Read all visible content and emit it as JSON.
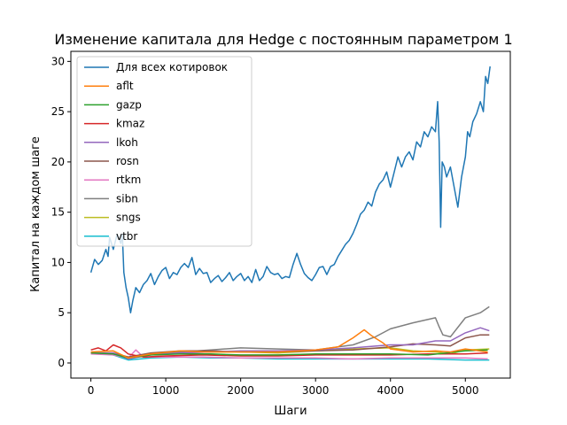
{
  "chart_data": {
    "type": "line",
    "title": "Изменение капитала для Hedge с постоянным параметром 1",
    "xlabel": "Шаги",
    "ylabel": "Капитал на каждом шаге",
    "xlim": [
      -267,
      5600
    ],
    "ylim": [
      -1.5,
      31.0
    ],
    "xticks": [
      0,
      1000,
      2000,
      3000,
      4000,
      5000
    ],
    "yticks": [
      0,
      5,
      10,
      15,
      20,
      25,
      30
    ],
    "legend_position": "top-left",
    "grid": false,
    "series": [
      {
        "name": "Для всех котировок",
        "color": "#1f77b4",
        "points": [
          [
            0,
            9.0
          ],
          [
            50,
            10.3
          ],
          [
            100,
            9.8
          ],
          [
            150,
            10.2
          ],
          [
            200,
            11.3
          ],
          [
            230,
            10.6
          ],
          [
            250,
            12.5
          ],
          [
            300,
            11.3
          ],
          [
            350,
            12.8
          ],
          [
            400,
            11.9
          ],
          [
            420,
            12.8
          ],
          [
            440,
            9.0
          ],
          [
            470,
            7.5
          ],
          [
            500,
            6.5
          ],
          [
            530,
            5.0
          ],
          [
            560,
            6.2
          ],
          [
            600,
            7.5
          ],
          [
            650,
            7.0
          ],
          [
            700,
            7.8
          ],
          [
            750,
            8.2
          ],
          [
            800,
            8.9
          ],
          [
            850,
            7.8
          ],
          [
            900,
            8.6
          ],
          [
            950,
            9.2
          ],
          [
            1000,
            9.5
          ],
          [
            1050,
            8.4
          ],
          [
            1100,
            9.0
          ],
          [
            1150,
            8.8
          ],
          [
            1200,
            9.5
          ],
          [
            1250,
            9.9
          ],
          [
            1300,
            9.5
          ],
          [
            1350,
            10.5
          ],
          [
            1400,
            8.8
          ],
          [
            1450,
            9.4
          ],
          [
            1500,
            8.9
          ],
          [
            1550,
            9.0
          ],
          [
            1600,
            8.0
          ],
          [
            1650,
            8.4
          ],
          [
            1700,
            8.7
          ],
          [
            1750,
            8.1
          ],
          [
            1800,
            8.5
          ],
          [
            1850,
            9.0
          ],
          [
            1900,
            8.2
          ],
          [
            1950,
            8.6
          ],
          [
            2000,
            8.9
          ],
          [
            2050,
            8.2
          ],
          [
            2100,
            8.6
          ],
          [
            2150,
            8.0
          ],
          [
            2200,
            9.3
          ],
          [
            2250,
            8.2
          ],
          [
            2300,
            8.6
          ],
          [
            2350,
            9.6
          ],
          [
            2400,
            9.0
          ],
          [
            2450,
            8.8
          ],
          [
            2500,
            8.9
          ],
          [
            2550,
            8.4
          ],
          [
            2600,
            8.6
          ],
          [
            2650,
            8.5
          ],
          [
            2700,
            9.8
          ],
          [
            2750,
            10.9
          ],
          [
            2800,
            9.8
          ],
          [
            2850,
            8.9
          ],
          [
            2900,
            8.5
          ],
          [
            2950,
            8.2
          ],
          [
            3000,
            8.8
          ],
          [
            3050,
            9.5
          ],
          [
            3100,
            9.6
          ],
          [
            3150,
            8.8
          ],
          [
            3200,
            9.6
          ],
          [
            3250,
            9.8
          ],
          [
            3300,
            10.6
          ],
          [
            3350,
            11.2
          ],
          [
            3400,
            11.8
          ],
          [
            3450,
            12.2
          ],
          [
            3500,
            12.9
          ],
          [
            3550,
            13.8
          ],
          [
            3600,
            14.8
          ],
          [
            3650,
            15.2
          ],
          [
            3700,
            16.0
          ],
          [
            3750,
            15.6
          ],
          [
            3800,
            17.0
          ],
          [
            3850,
            17.8
          ],
          [
            3900,
            18.2
          ],
          [
            3950,
            19.0
          ],
          [
            4000,
            17.5
          ],
          [
            4050,
            19.0
          ],
          [
            4100,
            20.5
          ],
          [
            4150,
            19.5
          ],
          [
            4200,
            20.5
          ],
          [
            4250,
            21.0
          ],
          [
            4300,
            20.2
          ],
          [
            4350,
            22.0
          ],
          [
            4400,
            21.5
          ],
          [
            4450,
            23.0
          ],
          [
            4500,
            22.5
          ],
          [
            4550,
            23.5
          ],
          [
            4600,
            23.0
          ],
          [
            4630,
            26.0
          ],
          [
            4650,
            22.0
          ],
          [
            4670,
            13.5
          ],
          [
            4690,
            20.0
          ],
          [
            4720,
            19.5
          ],
          [
            4750,
            18.5
          ],
          [
            4800,
            19.5
          ],
          [
            4850,
            17.5
          ],
          [
            4900,
            15.5
          ],
          [
            4950,
            18.5
          ],
          [
            5000,
            20.5
          ],
          [
            5030,
            23.0
          ],
          [
            5060,
            22.5
          ],
          [
            5100,
            24.0
          ],
          [
            5150,
            24.8
          ],
          [
            5200,
            26.0
          ],
          [
            5240,
            25.0
          ],
          [
            5270,
            28.5
          ],
          [
            5300,
            27.8
          ],
          [
            5330,
            29.5
          ]
        ]
      },
      {
        "name": "aflt",
        "color": "#ff7f0e",
        "points": [
          [
            0,
            1.1
          ],
          [
            300,
            1.2
          ],
          [
            500,
            0.5
          ],
          [
            800,
            0.9
          ],
          [
            1200,
            1.2
          ],
          [
            1500,
            1.1
          ],
          [
            2000,
            1.1
          ],
          [
            2500,
            1.1
          ],
          [
            3000,
            1.3
          ],
          [
            3300,
            1.6
          ],
          [
            3500,
            2.5
          ],
          [
            3650,
            3.3
          ],
          [
            3750,
            2.7
          ],
          [
            3900,
            2.0
          ],
          [
            4000,
            1.4
          ],
          [
            4300,
            1.1
          ],
          [
            4600,
            1.2
          ],
          [
            4800,
            1.1
          ],
          [
            5000,
            1.4
          ],
          [
            5300,
            1.1
          ]
        ]
      },
      {
        "name": "gazp",
        "color": "#2ca02c",
        "points": [
          [
            0,
            1.0
          ],
          [
            300,
            0.9
          ],
          [
            500,
            0.5
          ],
          [
            800,
            0.8
          ],
          [
            1200,
            0.9
          ],
          [
            1600,
            0.9
          ],
          [
            2000,
            0.8
          ],
          [
            2500,
            0.8
          ],
          [
            3000,
            0.9
          ],
          [
            3500,
            0.9
          ],
          [
            4000,
            0.9
          ],
          [
            4500,
            0.8
          ],
          [
            5000,
            1.2
          ],
          [
            5300,
            1.3
          ]
        ]
      },
      {
        "name": "kmaz",
        "color": "#d62728",
        "points": [
          [
            0,
            1.3
          ],
          [
            100,
            1.5
          ],
          [
            200,
            1.2
          ],
          [
            300,
            1.8
          ],
          [
            400,
            1.5
          ],
          [
            500,
            0.9
          ],
          [
            700,
            0.6
          ],
          [
            1000,
            0.7
          ],
          [
            1500,
            0.8
          ],
          [
            2000,
            0.7
          ],
          [
            2500,
            0.7
          ],
          [
            3000,
            0.8
          ],
          [
            3500,
            0.8
          ],
          [
            4000,
            0.8
          ],
          [
            4500,
            0.9
          ],
          [
            5000,
            0.9
          ],
          [
            5300,
            1.0
          ]
        ]
      },
      {
        "name": "lkoh",
        "color": "#9467bd",
        "points": [
          [
            0,
            1.0
          ],
          [
            300,
            1.0
          ],
          [
            500,
            0.4
          ],
          [
            800,
            0.8
          ],
          [
            1200,
            1.0
          ],
          [
            1600,
            1.1
          ],
          [
            2000,
            1.2
          ],
          [
            2500,
            1.2
          ],
          [
            3000,
            1.3
          ],
          [
            3500,
            1.5
          ],
          [
            4000,
            1.8
          ],
          [
            4300,
            1.8
          ],
          [
            4600,
            2.2
          ],
          [
            4800,
            2.2
          ],
          [
            5000,
            3.0
          ],
          [
            5200,
            3.5
          ],
          [
            5320,
            3.2
          ]
        ]
      },
      {
        "name": "rosn",
        "color": "#8c564b",
        "points": [
          [
            0,
            1.0
          ],
          [
            300,
            1.0
          ],
          [
            500,
            0.6
          ],
          [
            800,
            1.0
          ],
          [
            1200,
            1.2
          ],
          [
            1600,
            1.2
          ],
          [
            2000,
            1.1
          ],
          [
            2500,
            1.1
          ],
          [
            3000,
            1.2
          ],
          [
            3500,
            1.3
          ],
          [
            4000,
            1.6
          ],
          [
            4300,
            1.9
          ],
          [
            4600,
            1.8
          ],
          [
            4800,
            1.7
          ],
          [
            5000,
            2.5
          ],
          [
            5200,
            2.8
          ],
          [
            5320,
            2.8
          ]
        ]
      },
      {
        "name": "rtkm",
        "color": "#e377c2",
        "points": [
          [
            0,
            0.9
          ],
          [
            300,
            0.8
          ],
          [
            500,
            0.5
          ],
          [
            600,
            1.3
          ],
          [
            700,
            0.6
          ],
          [
            1000,
            0.6
          ],
          [
            1500,
            0.6
          ],
          [
            2000,
            0.5
          ],
          [
            2500,
            0.5
          ],
          [
            3000,
            0.5
          ],
          [
            3500,
            0.4
          ],
          [
            4000,
            0.5
          ],
          [
            4500,
            0.5
          ],
          [
            5000,
            0.5
          ],
          [
            5300,
            0.4
          ]
        ]
      },
      {
        "name": "sibn",
        "color": "#7f7f7f",
        "points": [
          [
            0,
            1.0
          ],
          [
            300,
            0.9
          ],
          [
            500,
            0.6
          ],
          [
            800,
            0.9
          ],
          [
            1200,
            1.1
          ],
          [
            1600,
            1.3
          ],
          [
            2000,
            1.5
          ],
          [
            2500,
            1.4
          ],
          [
            3000,
            1.3
          ],
          [
            3500,
            1.8
          ],
          [
            3800,
            2.6
          ],
          [
            4000,
            3.4
          ],
          [
            4300,
            4.0
          ],
          [
            4600,
            4.5
          ],
          [
            4650,
            3.6
          ],
          [
            4700,
            2.8
          ],
          [
            4800,
            2.6
          ],
          [
            5000,
            4.5
          ],
          [
            5200,
            5.0
          ],
          [
            5320,
            5.6
          ]
        ]
      },
      {
        "name": "sngs",
        "color": "#bcbd22",
        "points": [
          [
            0,
            1.0
          ],
          [
            300,
            0.9
          ],
          [
            500,
            0.5
          ],
          [
            800,
            0.9
          ],
          [
            1200,
            1.0
          ],
          [
            1600,
            1.1
          ],
          [
            2000,
            1.1
          ],
          [
            2500,
            1.0
          ],
          [
            3000,
            1.2
          ],
          [
            3500,
            1.4
          ],
          [
            4000,
            1.5
          ],
          [
            4300,
            1.2
          ],
          [
            4600,
            1.1
          ],
          [
            4800,
            0.9
          ],
          [
            5000,
            1.3
          ],
          [
            5320,
            1.4
          ]
        ]
      },
      {
        "name": "vtbr",
        "color": "#17becf",
        "points": [
          [
            0,
            1.0
          ],
          [
            300,
            0.8
          ],
          [
            500,
            0.3
          ],
          [
            800,
            0.5
          ],
          [
            1200,
            0.6
          ],
          [
            1600,
            0.5
          ],
          [
            2000,
            0.5
          ],
          [
            2500,
            0.4
          ],
          [
            3000,
            0.4
          ],
          [
            3500,
            0.4
          ],
          [
            4000,
            0.4
          ],
          [
            4500,
            0.4
          ],
          [
            5000,
            0.3
          ],
          [
            5320,
            0.3
          ]
        ]
      }
    ]
  }
}
